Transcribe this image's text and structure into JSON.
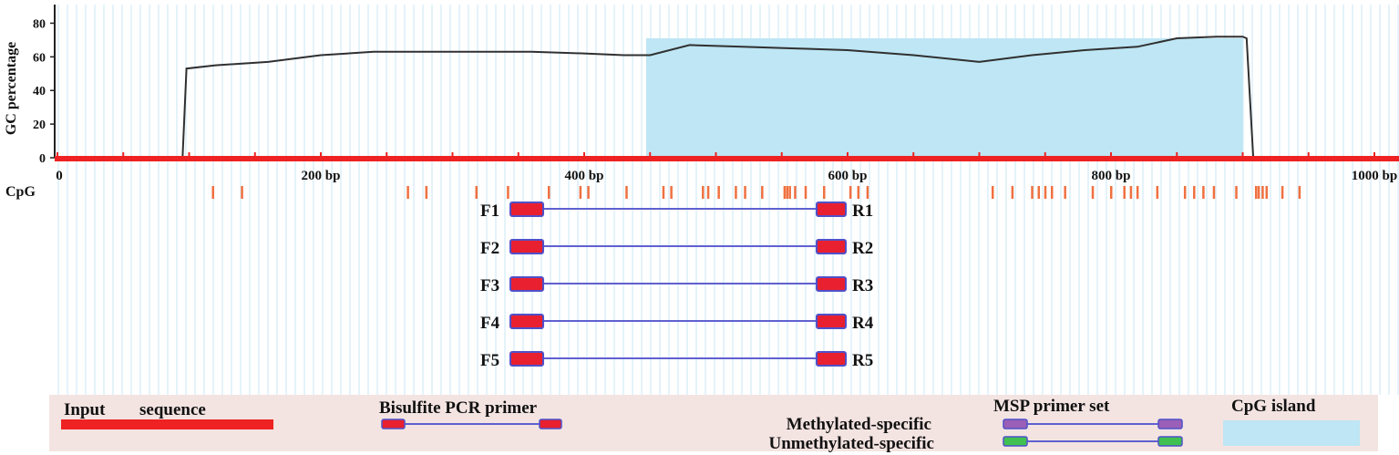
{
  "chart_data": {
    "type": "line",
    "ylabel": "GC percentage",
    "xlabel": "",
    "title": "",
    "xlim": [
      0,
      1000
    ],
    "ylim": [
      0,
      90
    ],
    "y_ticks": [
      "0",
      "20",
      "40",
      "60",
      "80"
    ],
    "x_ticks": [
      "0",
      "200 bp",
      "400 bp",
      "600 bp",
      "800 bp",
      "1000 bp"
    ],
    "grid": "vertical",
    "series": [
      {
        "type": "line",
        "x": [
          0,
          95,
          98,
          120,
          160,
          200,
          240,
          280,
          320,
          360,
          400,
          430,
          450,
          480,
          520,
          560,
          600,
          650,
          700,
          740,
          780,
          820,
          850,
          880,
          900,
          903,
          908,
          1000
        ],
        "y": [
          0,
          0,
          53,
          55,
          57,
          61,
          63,
          63,
          63,
          63,
          62,
          61,
          61,
          67,
          66,
          65,
          64,
          61,
          57,
          61,
          64,
          66,
          71,
          72,
          72,
          71,
          0,
          0
        ]
      }
    ],
    "cpg_island": {
      "start": 447,
      "end": 900
    },
    "cpg_label": "CpG",
    "cpg_sites": [
      118,
      140,
      266,
      280,
      318,
      342,
      373,
      397,
      403,
      432,
      460,
      466,
      490,
      494,
      502,
      515,
      522,
      535,
      552,
      554,
      556,
      560,
      568,
      582,
      602,
      608,
      615,
      710,
      725,
      740,
      745,
      750,
      755,
      765,
      786,
      800,
      810,
      815,
      820,
      835,
      856,
      863,
      870,
      878,
      895,
      910,
      912,
      915,
      918,
      930,
      943
    ]
  },
  "primers": {
    "pairs": [
      {
        "f": "F1",
        "r": "R1"
      },
      {
        "f": "F2",
        "r": "R2"
      },
      {
        "f": "F3",
        "r": "R3"
      },
      {
        "f": "F4",
        "r": "R4"
      },
      {
        "f": "F5",
        "r": "R5"
      }
    ]
  },
  "legend": {
    "input": "Input",
    "sequence": "sequence",
    "bisulfite": "Bisulfite PCR primer",
    "msp": "MSP primer set",
    "methylated": "Methylated-specific",
    "unmethylated": "Unmethylated-specific",
    "cpg_island": "CpG island"
  },
  "colors": {
    "input_line": "#ee2222",
    "cpg_island": "#bee6f4",
    "cpg_site": "#f07040",
    "primer_fill": "#e82030",
    "primer_edge": "#5050c8",
    "primer_link": "#6060d0",
    "msp_methyl": "#9c5fb8",
    "msp_unmethyl": "#40c050",
    "legend_bg": "#f3e4e2",
    "grid": "#d8eef8",
    "gc_line": "#303030"
  }
}
